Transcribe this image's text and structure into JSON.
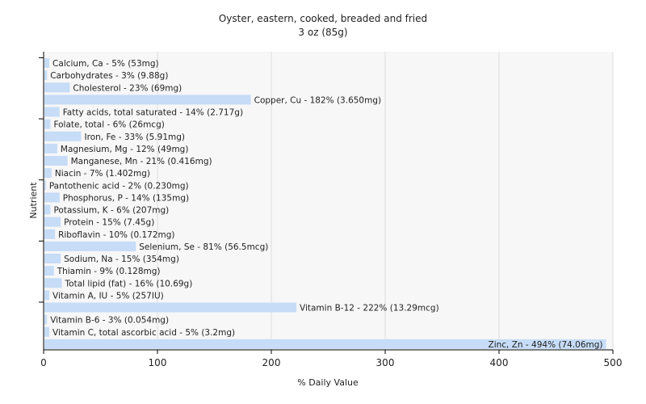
{
  "chart_data": {
    "type": "bar",
    "orientation": "horizontal",
    "title": "Oyster, eastern, cooked, breaded and fried",
    "subtitle": "3 oz (85g)",
    "xlabel": "% Daily Value",
    "ylabel": "Nutrient",
    "xlim": [
      0,
      500
    ],
    "xticks": [
      0,
      100,
      200,
      300,
      400,
      500
    ],
    "grid": true,
    "bar_color": "#c6dcf7",
    "categories": [
      "Calcium, Ca - 5% (53mg)",
      "Carbohydrates - 3% (9.88g)",
      "Cholesterol - 23% (69mg)",
      "Copper, Cu - 182% (3.650mg)",
      "Fatty acids, total saturated - 14% (2.717g)",
      "Folate, total - 6% (26mcg)",
      "Iron, Fe - 33% (5.91mg)",
      "Magnesium, Mg - 12% (49mg)",
      "Manganese, Mn - 21% (0.416mg)",
      "Niacin - 7% (1.402mg)",
      "Pantothenic acid - 2% (0.230mg)",
      "Phosphorus, P - 14% (135mg)",
      "Potassium, K - 6% (207mg)",
      "Protein - 15% (7.45g)",
      "Riboflavin - 10% (0.172mg)",
      "Selenium, Se - 81% (56.5mcg)",
      "Sodium, Na - 15% (354mg)",
      "Thiamin - 9% (0.128mg)",
      "Total lipid (fat) - 16% (10.69g)",
      "Vitamin A, IU - 5% (257IU)",
      "Vitamin B-12 - 222% (13.29mcg)",
      "Vitamin B-6 - 3% (0.054mg)",
      "Vitamin C, total ascorbic acid - 5% (3.2mg)",
      "Zinc, Zn - 494% (74.06mg)"
    ],
    "values": [
      5,
      3,
      23,
      182,
      14,
      6,
      33,
      12,
      21,
      7,
      2,
      14,
      6,
      15,
      10,
      81,
      15,
      9,
      16,
      5,
      222,
      3,
      5,
      494
    ]
  }
}
